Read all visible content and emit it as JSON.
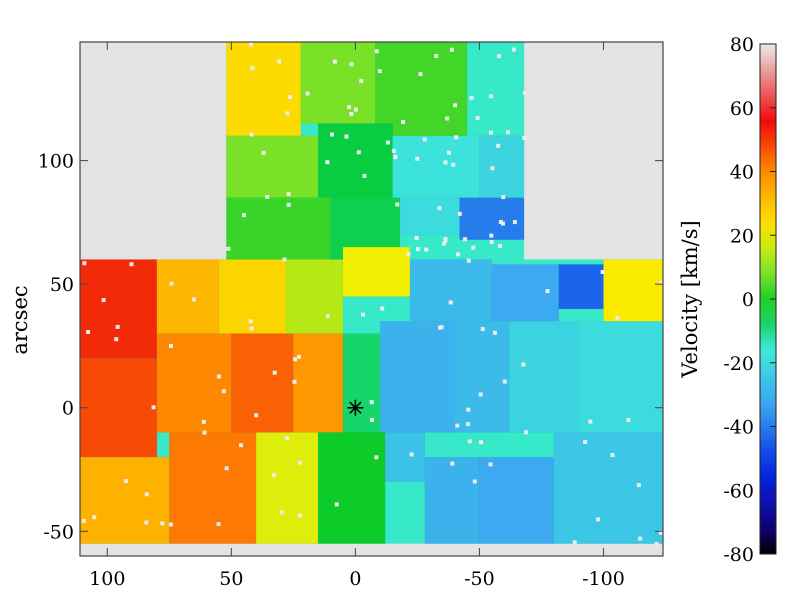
{
  "chart_data": [
    {
      "type": "heatmap",
      "title": "",
      "xlabel": "",
      "ylabel": "arcsec",
      "x_reversed": true,
      "xlim": [
        111,
        -124
      ],
      "ylim": [
        -60,
        148
      ],
      "xticks": [
        100,
        50,
        0,
        -50,
        -100
      ],
      "yticks": [
        -50,
        0,
        50,
        100
      ],
      "xtick_labels": [
        "100",
        "50",
        "0",
        "-50",
        "-100"
      ],
      "ytick_labels": [
        "-50",
        "0",
        "50",
        "100"
      ],
      "background_color": "#e3e3e3",
      "center_marker": {
        "symbol": "asterisk",
        "x": 0,
        "y": 0
      },
      "colormap": {
        "name": "rainbow velocity",
        "vmin": -80,
        "vmax": 80
      },
      "field_coverage_arcsec": [
        {
          "x": [
            52,
            -68
          ],
          "y": [
            58,
            148
          ]
        },
        {
          "x": [
            111,
            -124
          ],
          "y": [
            -55,
            60
          ]
        }
      ],
      "velocity_regions": [
        {
          "x": [
            52,
            22
          ],
          "y": [
            110,
            148
          ],
          "v": 25
        },
        {
          "x": [
            22,
            -8
          ],
          "y": [
            115,
            148
          ],
          "v": 8
        },
        {
          "x": [
            -8,
            -45
          ],
          "y": [
            110,
            148
          ],
          "v": 3
        },
        {
          "x": [
            -45,
            -68
          ],
          "y": [
            110,
            148
          ],
          "v": -15
        },
        {
          "x": [
            52,
            15
          ],
          "y": [
            85,
            110
          ],
          "v": 8
        },
        {
          "x": [
            15,
            -15
          ],
          "y": [
            85,
            115
          ],
          "v": -5
        },
        {
          "x": [
            -15,
            -50
          ],
          "y": [
            85,
            110
          ],
          "v": -18
        },
        {
          "x": [
            -50,
            -68
          ],
          "y": [
            85,
            110
          ],
          "v": -22
        },
        {
          "x": [
            52,
            10
          ],
          "y": [
            58,
            85
          ],
          "v": 2
        },
        {
          "x": [
            10,
            -18
          ],
          "y": [
            58,
            85
          ],
          "v": -6
        },
        {
          "x": [
            -18,
            -42
          ],
          "y": [
            70,
            85
          ],
          "v": -20
        },
        {
          "x": [
            -42,
            -68
          ],
          "y": [
            68,
            85
          ],
          "v": -40
        },
        {
          "x": [
            111,
            80
          ],
          "y": [
            20,
            60
          ],
          "v": 52
        },
        {
          "x": [
            80,
            55
          ],
          "y": [
            30,
            60
          ],
          "v": 32
        },
        {
          "x": [
            55,
            28
          ],
          "y": [
            30,
            60
          ],
          "v": 26
        },
        {
          "x": [
            28,
            5
          ],
          "y": [
            30,
            60
          ],
          "v": 14
        },
        {
          "x": [
            5,
            -22
          ],
          "y": [
            45,
            65
          ],
          "v": 20
        },
        {
          "x": [
            -22,
            -55
          ],
          "y": [
            35,
            60
          ],
          "v": -28
        },
        {
          "x": [
            -55,
            -82
          ],
          "y": [
            35,
            58
          ],
          "v": -32
        },
        {
          "x": [
            -82,
            -100
          ],
          "y": [
            40,
            58
          ],
          "v": -44
        },
        {
          "x": [
            -100,
            -124
          ],
          "y": [
            30,
            60
          ],
          "v": 22
        },
        {
          "x": [
            111,
            80
          ],
          "y": [
            -20,
            20
          ],
          "v": 48
        },
        {
          "x": [
            80,
            50
          ],
          "y": [
            -10,
            30
          ],
          "v": 40
        },
        {
          "x": [
            50,
            25
          ],
          "y": [
            -10,
            30
          ],
          "v": 45
        },
        {
          "x": [
            25,
            5
          ],
          "y": [
            -10,
            30
          ],
          "v": 38
        },
        {
          "x": [
            5,
            -10
          ],
          "y": [
            -10,
            30
          ],
          "v": -8
        },
        {
          "x": [
            -10,
            -40
          ],
          "y": [
            -10,
            35
          ],
          "v": -30
        },
        {
          "x": [
            -40,
            -62
          ],
          "y": [
            -10,
            35
          ],
          "v": -28
        },
        {
          "x": [
            -62,
            -90
          ],
          "y": [
            -10,
            35
          ],
          "v": -22
        },
        {
          "x": [
            -90,
            -124
          ],
          "y": [
            -10,
            35
          ],
          "v": -20
        },
        {
          "x": [
            111,
            75
          ],
          "y": [
            -55,
            -20
          ],
          "v": 33
        },
        {
          "x": [
            75,
            40
          ],
          "y": [
            -55,
            -10
          ],
          "v": 42
        },
        {
          "x": [
            40,
            15
          ],
          "y": [
            -55,
            -10
          ],
          "v": 18
        },
        {
          "x": [
            15,
            -12
          ],
          "y": [
            -55,
            -10
          ],
          "v": -2
        },
        {
          "x": [
            -12,
            -28
          ],
          "y": [
            -30,
            -10
          ],
          "v": -26
        },
        {
          "x": [
            -28,
            -50
          ],
          "y": [
            -55,
            -20
          ],
          "v": -30
        },
        {
          "x": [
            -50,
            -80
          ],
          "y": [
            -55,
            -20
          ],
          "v": -32
        },
        {
          "x": [
            -80,
            -124
          ],
          "y": [
            -55,
            -10
          ],
          "v": -25
        }
      ],
      "colorbar": {
        "label": "Velocity [km/s]",
        "vmin": -80,
        "vmax": 80,
        "ticks": [
          80,
          60,
          40,
          20,
          0,
          -20,
          -40,
          -60,
          -80
        ],
        "tick_labels": [
          "80",
          "60",
          "40",
          "20",
          "0",
          "-20",
          "-40",
          "-60",
          "-80"
        ]
      }
    }
  ]
}
